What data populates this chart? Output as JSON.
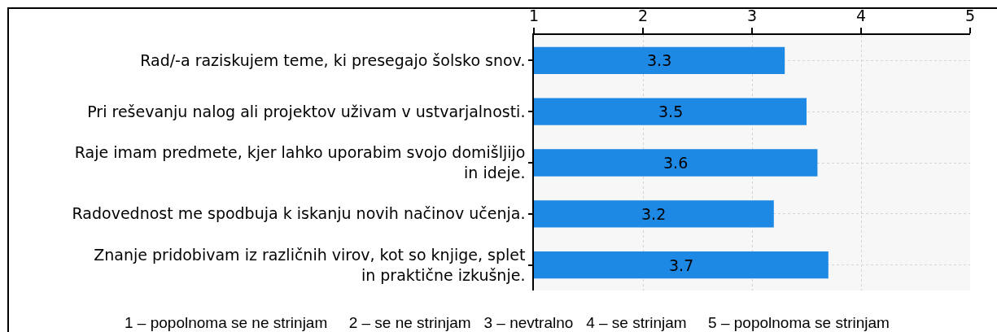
{
  "chart_data": {
    "type": "bar",
    "orientation": "horizontal",
    "categories": [
      "Rad/-a raziskujem teme, ki presegajo šolsko snov.",
      "Pri reševanju nalog ali projektov uživam v ustvarjalnosti.",
      "Raje imam predmete, kjer lahko uporabim svojo domišljijo\nin ideje.",
      "Radovednost me spodbuja k iskanju novih načinov učenja.",
      "Znanje pridobivam iz različnih virov, kot so knjige, splet\nin praktične izkušnje."
    ],
    "values": [
      3.3,
      3.5,
      3.6,
      3.2,
      3.7
    ],
    "color": "#1e88e5",
    "xlim": [
      1,
      5
    ],
    "xticks": [
      1,
      2,
      3,
      4,
      5
    ],
    "grid": true,
    "data_labels": true,
    "annotations": [
      "1 – popolnoma se ne strinjam     2 – se ne strinjam   3 – nevtralno   4 – se strinjam     5 – popolnoma se strinjam"
    ]
  }
}
